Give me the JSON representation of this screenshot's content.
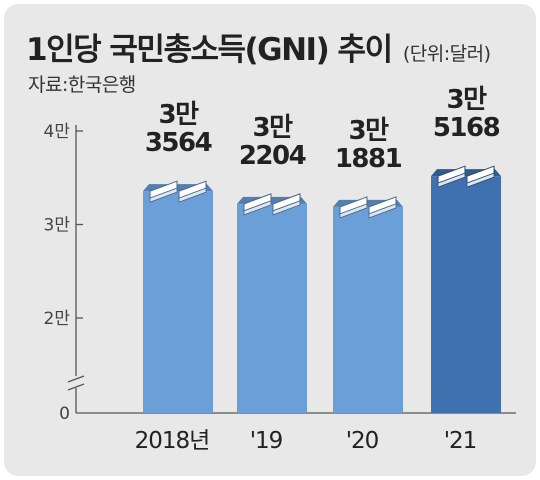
{
  "title": "1인당 국민총소득(GNI) 추이",
  "unit": "(단위:달러)",
  "source": "자료:한국은행",
  "chart_data": {
    "type": "bar",
    "title": "1인당 국민총소득(GNI) 추이",
    "unit": "달러",
    "categories": [
      "2018년",
      "'19",
      "'20",
      "'21"
    ],
    "values": [
      33564,
      32204,
      31881,
      35168
    ],
    "value_labels": [
      [
        "3만",
        "3564"
      ],
      [
        "3만",
        "2204"
      ],
      [
        "3만",
        "1881"
      ],
      [
        "3만",
        "5168"
      ]
    ],
    "y_ticks": [
      {
        "value": 0,
        "label": "0"
      },
      {
        "value": 20000,
        "label": "2만"
      },
      {
        "value": 30000,
        "label": "3만"
      },
      {
        "value": 40000,
        "label": "4만"
      }
    ],
    "ylim": [
      0,
      40000
    ],
    "axis_break": true,
    "grid": false,
    "colors": {
      "bar": "#6a9fd8",
      "bar_highlight": "#3f71b0",
      "background": "#e8e8e8"
    }
  }
}
